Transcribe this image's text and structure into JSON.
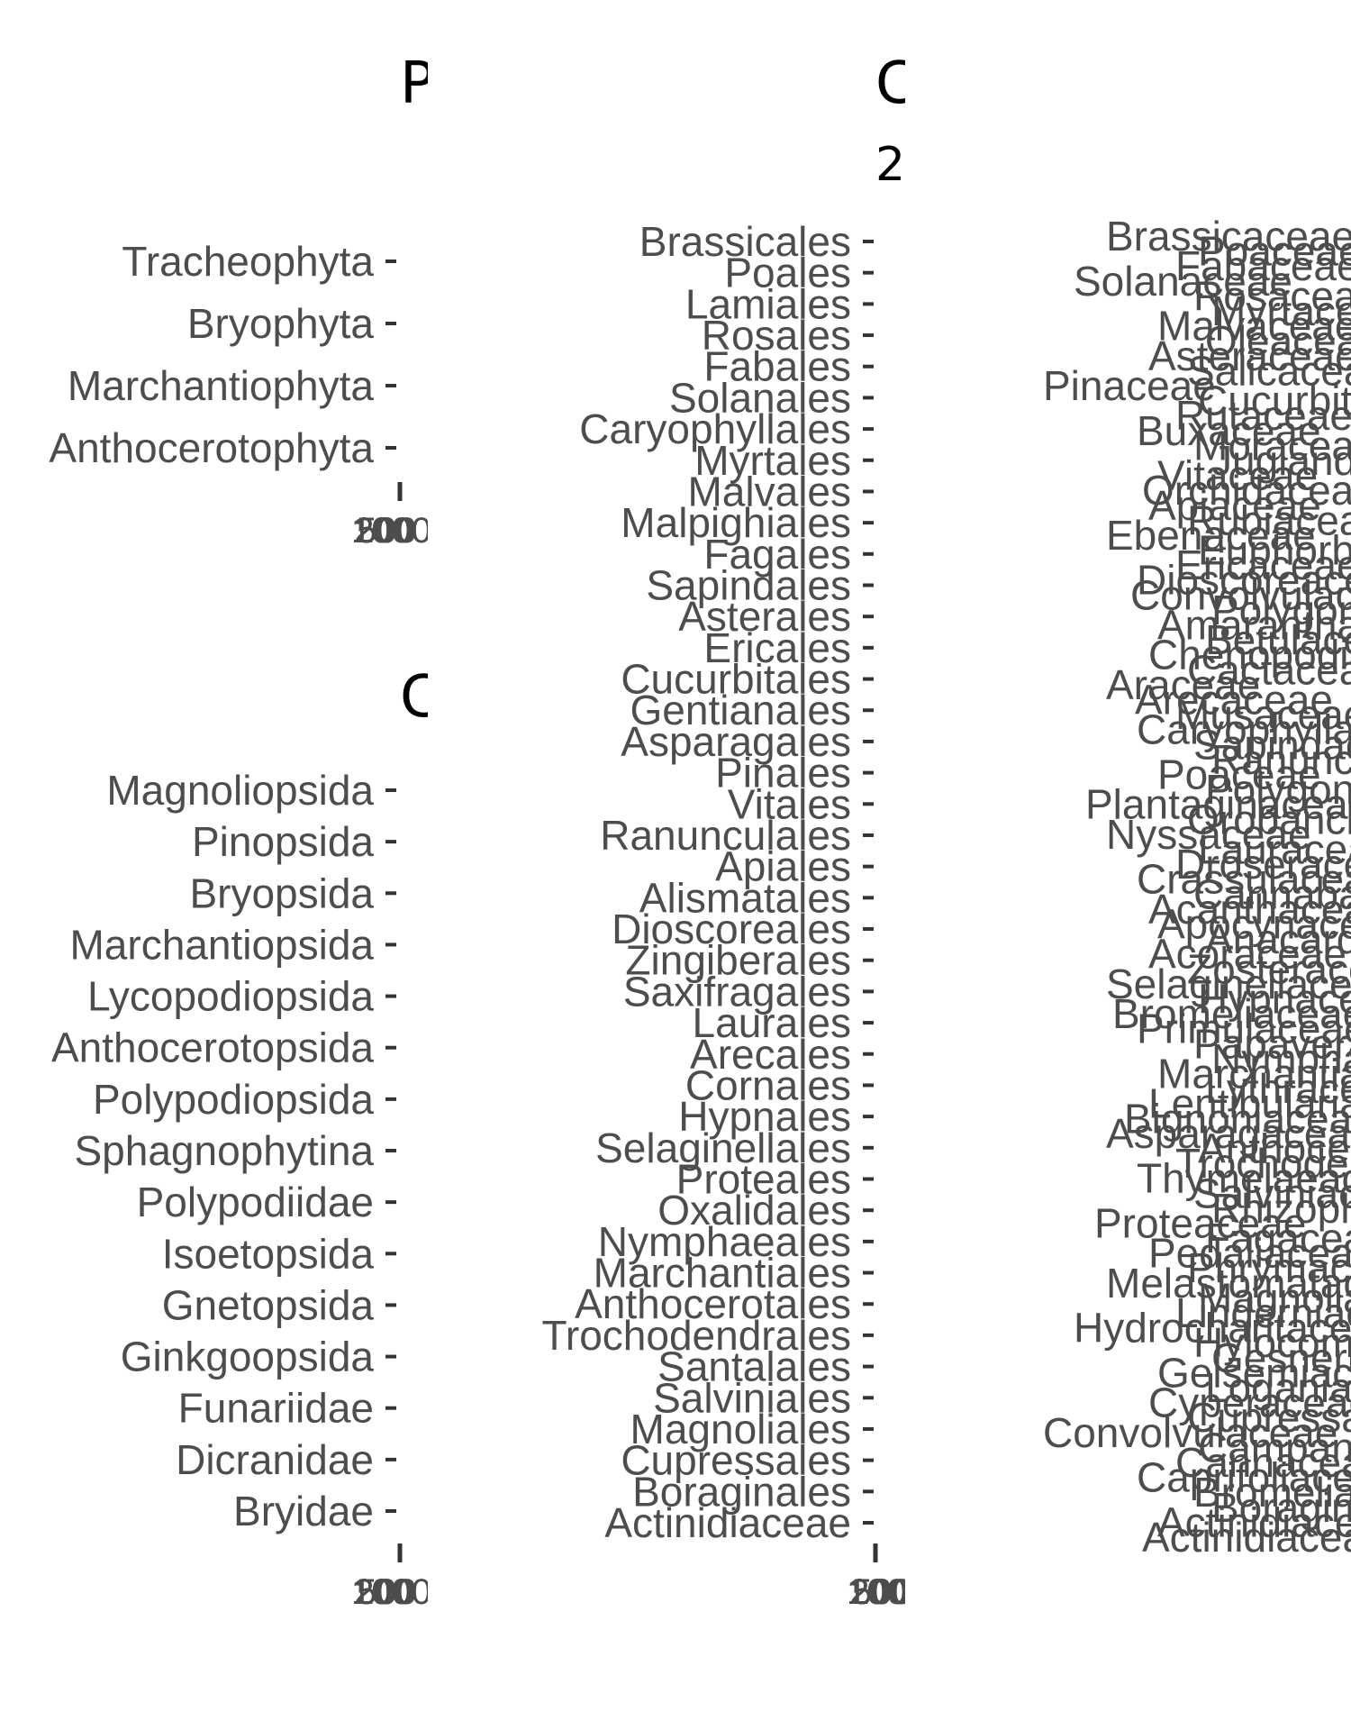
{
  "chart_data": [
    {
      "type": "bar",
      "orientation": "horizontal",
      "title": "P",
      "categories": [
        "Tracheophyta",
        "Bryophyta",
        "Marchantiophyta",
        "Anthocerotophyta"
      ],
      "x_tick_labels": [
        "1",
        "2",
        "5",
        "10",
        "20",
        "50",
        "100",
        "200",
        "500",
        "1000"
      ]
    },
    {
      "type": "bar",
      "orientation": "horizontal",
      "title": "C",
      "categories": [
        "Magnoliopsida",
        "Pinopsida",
        "Bryopsida",
        "Marchantiopsida",
        "Lycopodiopsida",
        "Anthocerotopsida",
        "Polypodiopsida",
        "Sphagnophytina",
        "Polypodiidae",
        "Isoetopsida",
        "Gnetopsida",
        "Ginkgoopsida",
        "Funariidae",
        "Dicranidae",
        "Bryidae"
      ],
      "x_tick_labels": [
        "1",
        "2",
        "5",
        "10",
        "20",
        "50",
        "100",
        "200",
        "500",
        "1000"
      ]
    },
    {
      "type": "bar",
      "orientation": "horizontal",
      "title": "C",
      "subtitle": "2",
      "categories": [
        "Brassicales",
        "Poales",
        "Lamiales",
        "Rosales",
        "Fabales",
        "Solanales",
        "Caryophyllales",
        "Myrtales",
        "Malvales",
        "Malpighiales",
        "Fagales",
        "Sapindales",
        "Asterales",
        "Ericales",
        "Cucurbitales",
        "Gentianales",
        "Asparagales",
        "Pinales",
        "Vitales",
        "Ranunculales",
        "Apiales",
        "Alismatales",
        "Dioscoreales",
        "Zingiberales",
        "Saxifragales",
        "Laurales",
        "Arecales",
        "Cornales",
        "Hypnales",
        "Selaginellales",
        "Proteales",
        "Oxalidales",
        "Nymphaeales",
        "Marchantiales",
        "Anthocerotales",
        "Trochodendrales",
        "Santalales",
        "Salviniales",
        "Magnoliales",
        "Cupressales",
        "Boraginales",
        "Actinidiaceae"
      ],
      "x_tick_labels": [
        "1",
        "2",
        "5",
        "10",
        "20",
        "50",
        "100",
        "200",
        "500"
      ]
    },
    {
      "type": "bar",
      "orientation": "horizontal",
      "title": "",
      "categories": [
        "Brassicaceae",
        "Poaceae",
        "Fabaceae",
        "Solanaceae",
        "Rosaceae",
        "Myrtaceae",
        "Malvaceae",
        "Oleaceae",
        "Asteraceae",
        "Salicaceae",
        "Pinaceae",
        "Cucurbitaceae",
        "Rutaceae",
        "Buxaceae",
        "Moraceae",
        "Juglandaceae",
        "Vitaceae",
        "Orchidaceae",
        "Apiaceae",
        "Rubiaceae",
        "Ebenaceae",
        "Euphorbiaceae",
        "Ericaceae",
        "Dioscoreaceae",
        "Convolvulaceae",
        "Polygonaceae",
        "Amaranthaceae",
        "Betulaceae",
        "Chenopodiaceae",
        "Cactaceae",
        "Araceae",
        "Arecaceae",
        "Musaceae",
        "Caryophyllaceae",
        "Sapindaceae",
        "Ranunculaceae",
        "Poaceae",
        "Polygonaceae",
        "Plantaginaceae",
        "Orobanchaceae",
        "Nyssaceae",
        "Lauraceae",
        "Droseraceae",
        "Crassulaceae",
        "Cannabaceae",
        "Acanthaceae",
        "Apocynaceae",
        "Anacardiaceae",
        "Acoraceae",
        "Zosteraceae",
        "Selaginellaceae",
        "Hypnaceae",
        "Bromeliaceae",
        "Primulaceae",
        "Papaveraceae",
        "Nymphaeaceae",
        "Marchantiaceae",
        "Lythraceae",
        "Lentibulariaceae",
        "Bignoniaceae",
        "Asparagaceae",
        "Anthocerotaceae",
        "Trochodendraceae",
        "Thymelaeaceae",
        "Salviniaceae",
        "Rhizophoraceae",
        "Proteaceae",
        "Fagaceae",
        "Pedaliaceae",
        "Phrymaceae",
        "Melastomataceae",
        "Magnoliaceae",
        "Linderniaceae",
        "Hydrocharitaceae",
        "Hylocomiaceae",
        "Gesneriaceae",
        "Gelsemiaceae",
        "Loganiaceae",
        "Cyperaceae",
        "Cupressaceae",
        "Convolvulaceae",
        "Campanulaceae",
        "Cannaceae",
        "Caprifoliaceae",
        "Bromeliaceae",
        "Boraginaceae",
        "Actinidiaceae",
        "Actinidiaceae"
      ],
      "x_tick_labels": []
    }
  ]
}
